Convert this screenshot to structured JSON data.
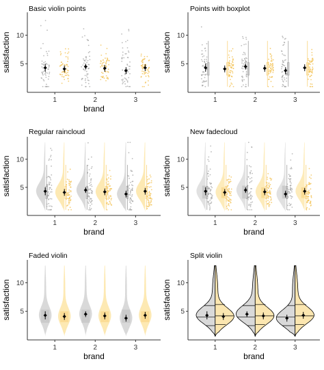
{
  "colors": {
    "grey_fill": "#d9d9d9",
    "grey_dark": "#bdbdbd",
    "grey_point": "#9e9e9e",
    "orange_fill": "#fde9b3",
    "orange_dark": "#f9d27c",
    "orange_point": "#f3c45b",
    "split_orange": "#fbe6b0",
    "mean": "#000000"
  },
  "chart_data": [
    {
      "type": "scatter",
      "title": "Basic violin points",
      "xlabel": "brand",
      "ylabel": "satisfaction",
      "categories": [
        "1",
        "2",
        "3"
      ],
      "ylim": [
        0,
        14
      ],
      "yticks": [
        5,
        10
      ],
      "series": [
        {
          "means": [
            4.3,
            4.5,
            3.8
          ],
          "ci": [
            [
              3.6,
              5.0
            ],
            [
              4.0,
              5.0
            ],
            [
              3.2,
              4.4
            ]
          ]
        },
        {
          "means": [
            4.1,
            4.2,
            4.3
          ],
          "ci": [
            [
              3.5,
              4.7
            ],
            [
              3.6,
              4.8
            ],
            [
              3.7,
              4.9
            ]
          ]
        }
      ],
      "grid": false
    },
    {
      "type": "scatter",
      "title": "Points with boxplot",
      "xlabel": "",
      "ylabel": "satisfaction",
      "categories": [
        "1",
        "2",
        "3"
      ],
      "ylim": [
        0,
        14
      ],
      "yticks": [
        5,
        10
      ],
      "series": [
        {
          "means": [
            4.3,
            4.5,
            3.8
          ],
          "ci": [
            [
              3.6,
              5.0
            ],
            [
              4.0,
              5.0
            ],
            [
              3.2,
              4.4
            ]
          ]
        },
        {
          "means": [
            4.1,
            4.2,
            4.3
          ],
          "ci": [
            [
              3.5,
              4.7
            ],
            [
              3.6,
              4.8
            ],
            [
              3.7,
              4.9
            ]
          ]
        }
      ],
      "grid": false
    },
    {
      "type": "area",
      "title": "Regular raincloud",
      "xlabel": "brand",
      "ylabel": "satisfaction",
      "categories": [
        "1",
        "2",
        "3"
      ],
      "ylim": [
        0,
        14
      ],
      "yticks": [
        5,
        10
      ],
      "series": [
        {
          "means": [
            4.3,
            4.5,
            3.8
          ],
          "ci": [
            [
              3.6,
              5.0
            ],
            [
              4.0,
              5.0
            ],
            [
              3.2,
              4.4
            ]
          ]
        },
        {
          "means": [
            4.1,
            4.2,
            4.3
          ],
          "ci": [
            [
              3.5,
              4.7
            ],
            [
              3.6,
              4.8
            ],
            [
              3.7,
              4.9
            ]
          ]
        }
      ],
      "grid": false
    },
    {
      "type": "area",
      "title": "New fadecloud",
      "xlabel": "brand",
      "ylabel": "satisfaction",
      "categories": [
        "1",
        "2",
        "3"
      ],
      "ylim": [
        0,
        14
      ],
      "yticks": [
        5,
        10
      ],
      "series": [
        {
          "means": [
            4.3,
            4.5,
            3.8
          ],
          "ci": [
            [
              3.6,
              5.0
            ],
            [
              4.0,
              5.0
            ],
            [
              3.2,
              4.4
            ]
          ]
        },
        {
          "means": [
            4.1,
            4.2,
            4.3
          ],
          "ci": [
            [
              3.5,
              4.7
            ],
            [
              3.6,
              4.8
            ],
            [
              3.7,
              4.9
            ]
          ]
        }
      ],
      "grid": false
    },
    {
      "type": "area",
      "title": "Faded violin",
      "xlabel": "brand",
      "ylabel": "satisfaction",
      "categories": [
        "1",
        "2",
        "3"
      ],
      "ylim": [
        0,
        14
      ],
      "yticks": [
        5,
        10
      ],
      "series": [
        {
          "means": [
            4.3,
            4.5,
            3.8
          ],
          "ci": [
            [
              3.6,
              5.0
            ],
            [
              4.0,
              5.0
            ],
            [
              3.2,
              4.4
            ]
          ]
        },
        {
          "means": [
            4.1,
            4.2,
            4.3
          ],
          "ci": [
            [
              3.5,
              4.7
            ],
            [
              3.6,
              4.8
            ],
            [
              3.7,
              4.9
            ]
          ]
        }
      ],
      "grid": false
    },
    {
      "type": "area",
      "title": "Split violin",
      "xlabel": "brand",
      "ylabel": "satisfaction",
      "categories": [
        "1",
        "2",
        "3"
      ],
      "ylim": [
        0,
        14
      ],
      "yticks": [
        5,
        10
      ],
      "series": [
        {
          "means": [
            4.3,
            4.5,
            3.8
          ],
          "ci": [
            [
              3.6,
              5.0
            ],
            [
              4.0,
              5.0
            ],
            [
              3.2,
              4.4
            ]
          ]
        },
        {
          "means": [
            4.1,
            4.2,
            4.3
          ],
          "ci": [
            [
              3.5,
              4.7
            ],
            [
              3.6,
              4.8
            ],
            [
              3.7,
              4.9
            ]
          ]
        }
      ],
      "grid": false
    }
  ]
}
